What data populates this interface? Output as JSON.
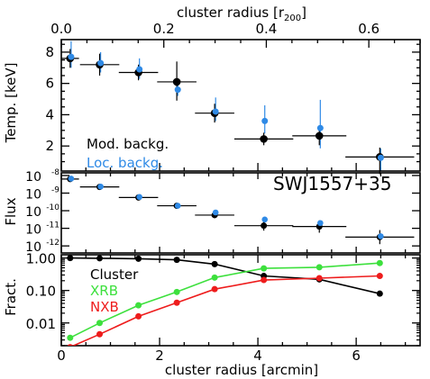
{
  "figure": {
    "top_axis_label": "cluster radius [r",
    "top_axis_label_sub": "200",
    "top_axis_label_end": "]",
    "bottom_axis_label": "cluster radius [arcmin]",
    "object_name": "SWJ1557+35"
  },
  "chart_data": [
    {
      "id": "temperature",
      "type": "scatter",
      "ylabel": "Temp. [keV]",
      "xlim": [
        0,
        7.3
      ],
      "ylim": [
        0.4,
        8.8
      ],
      "x_ticks": [
        0,
        2,
        4,
        6
      ],
      "y_ticks": [
        2,
        4,
        6,
        8
      ],
      "y_tick_labels": [
        "2",
        "4",
        "6",
        "8"
      ],
      "top_axis": {
        "xlim": [
          0,
          0.7
        ],
        "ticks": [
          0.0,
          0.2,
          0.4,
          0.6
        ],
        "tick_labels": [
          "0.0",
          "0.2",
          "0.4",
          "0.6"
        ]
      },
      "legend": [
        {
          "name": "Mod. backg.",
          "color": "#000000"
        },
        {
          "name": "Loc. backg.",
          "color": "#2f8ae6"
        }
      ],
      "series": [
        {
          "name": "Mod. backg.",
          "color": "#000000",
          "x": [
            0.18,
            0.78,
            1.57,
            2.35,
            3.12,
            4.12,
            5.25,
            6.48
          ],
          "xerr": [
            0.18,
            0.4,
            0.4,
            0.4,
            0.4,
            0.6,
            0.55,
            0.7
          ],
          "y": [
            7.6,
            7.2,
            6.7,
            6.1,
            4.1,
            2.45,
            2.65,
            1.3
          ],
          "yerr_lo": [
            0.6,
            0.7,
            0.5,
            1.2,
            0.6,
            0.4,
            0.6,
            1.1
          ],
          "yerr_hi": [
            0.6,
            0.7,
            0.5,
            1.3,
            0.6,
            0.4,
            0.6,
            0.6
          ]
        },
        {
          "name": "Loc. backg.",
          "color": "#2f8ae6",
          "x": [
            0.2,
            0.8,
            1.59,
            2.37,
            3.14,
            4.14,
            5.27,
            6.5
          ],
          "y": [
            7.7,
            7.3,
            6.9,
            5.6,
            4.2,
            3.6,
            3.15,
            1.25
          ],
          "yerr_lo": [
            0.7,
            0.6,
            0.6,
            0.4,
            0.6,
            0.8,
            1.3,
            0.8
          ],
          "yerr_hi": [
            1.0,
            0.7,
            0.7,
            0.5,
            0.9,
            1.0,
            1.8,
            0.6
          ]
        }
      ]
    },
    {
      "id": "flux",
      "type": "scatter",
      "ylabel": "Flux",
      "yscale": "log",
      "xlim": [
        0,
        7.3
      ],
      "ylim_log10": [
        -12.4,
        -7.85
      ],
      "y_ticks_log10": [
        -8,
        -9,
        -10,
        -11,
        -12
      ],
      "y_tick_labels": [
        {
          "base": "10",
          "exp": "-8"
        },
        {
          "base": "10",
          "exp": "-9"
        },
        {
          "base": "10",
          "exp": "-10"
        },
        {
          "base": "10",
          "exp": "-11"
        },
        {
          "base": "10",
          "exp": "-12"
        }
      ],
      "series": [
        {
          "name": "Mod. backg.",
          "color": "#000000",
          "x": [
            0.18,
            0.78,
            1.57,
            2.35,
            3.12,
            4.12,
            5.25,
            6.48
          ],
          "xerr": [
            0.18,
            0.4,
            0.4,
            0.4,
            0.4,
            0.6,
            0.55,
            0.7
          ],
          "log10_y": [
            -8.2,
            -8.65,
            -9.25,
            -9.72,
            -10.25,
            -10.85,
            -10.9,
            -11.5
          ],
          "log10_err": [
            0.04,
            0.04,
            0.05,
            0.07,
            0.1,
            0.28,
            0.35,
            0.4
          ]
        },
        {
          "name": "Loc. backg.",
          "color": "#2f8ae6",
          "x": [
            0.2,
            0.8,
            1.59,
            2.37,
            3.14,
            4.14,
            5.27,
            6.5
          ],
          "log10_y": [
            -8.18,
            -8.63,
            -9.22,
            -9.72,
            -10.1,
            -10.5,
            -10.7,
            -11.45
          ],
          "log10_err": [
            0.04,
            0.04,
            0.05,
            0.06,
            0.08,
            0.1,
            0.12,
            0.2
          ]
        }
      ]
    },
    {
      "id": "fraction",
      "type": "line",
      "ylabel": "Fract.",
      "yscale": "log",
      "xlim": [
        0,
        7.3
      ],
      "x_ticks": [
        0,
        2,
        4,
        6
      ],
      "x_tick_labels": [
        "0",
        "2",
        "4",
        "6"
      ],
      "ylim_log10": [
        -2.7,
        0.1
      ],
      "y_ticks_log10": [
        0,
        -1,
        -2
      ],
      "y_tick_labels": [
        "1.00",
        "0.10",
        "0.01"
      ],
      "legend": [
        {
          "name": "Cluster",
          "color": "#000000"
        },
        {
          "name": "XRB",
          "color": "#3de03d"
        },
        {
          "name": "NXB",
          "color": "#ee1c1c"
        }
      ],
      "series": [
        {
          "name": "Cluster",
          "color": "#000000",
          "x": [
            0.18,
            0.78,
            1.57,
            2.35,
            3.12,
            4.12,
            5.25,
            6.48
          ],
          "y": [
            1.0,
            0.98,
            0.95,
            0.88,
            0.65,
            0.28,
            0.22,
            0.08
          ]
        },
        {
          "name": "XRB",
          "color": "#3de03d",
          "x": [
            0.18,
            0.78,
            1.57,
            2.35,
            3.12,
            4.12,
            5.25,
            6.48
          ],
          "y": [
            0.0035,
            0.01,
            0.035,
            0.09,
            0.25,
            0.48,
            0.52,
            0.7
          ]
        },
        {
          "name": "NXB",
          "color": "#ee1c1c",
          "x": [
            0.18,
            0.78,
            1.57,
            2.35,
            3.12,
            4.12,
            5.25,
            6.48
          ],
          "y": [
            0.0018,
            0.0045,
            0.016,
            0.042,
            0.11,
            0.21,
            0.24,
            0.28
          ]
        }
      ]
    }
  ]
}
